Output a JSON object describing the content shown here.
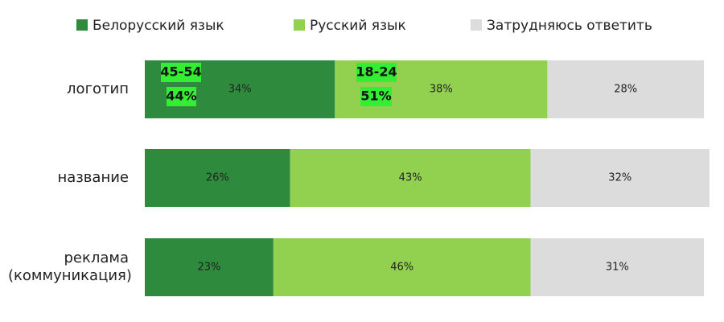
{
  "chart_data": {
    "type": "bar",
    "orientation": "horizontal",
    "stacked": true,
    "categories": [
      "логотип",
      "название",
      "реклама (коммуникация)"
    ],
    "series": [
      {
        "name": "Белорусский язык",
        "color": "#2e8a3c",
        "values": [
          34,
          26,
          23
        ],
        "value_labels": [
          "34%",
          "26%",
          "23%"
        ]
      },
      {
        "name": "Русский язык",
        "color": "#92d050",
        "values": [
          38,
          43,
          46
        ],
        "value_labels": [
          "38%",
          "43%",
          "46%"
        ]
      },
      {
        "name": "Затрудняюсь ответить",
        "color": "#dcdcdc",
        "values": [
          28,
          32,
          31
        ],
        "value_labels": [
          "28%",
          "32%",
          "31%"
        ]
      }
    ],
    "xlim": [
      0,
      100
    ],
    "annotations": [
      [
        "45-54",
        "44%"
      ],
      [
        "18-24",
        "51%"
      ]
    ]
  }
}
